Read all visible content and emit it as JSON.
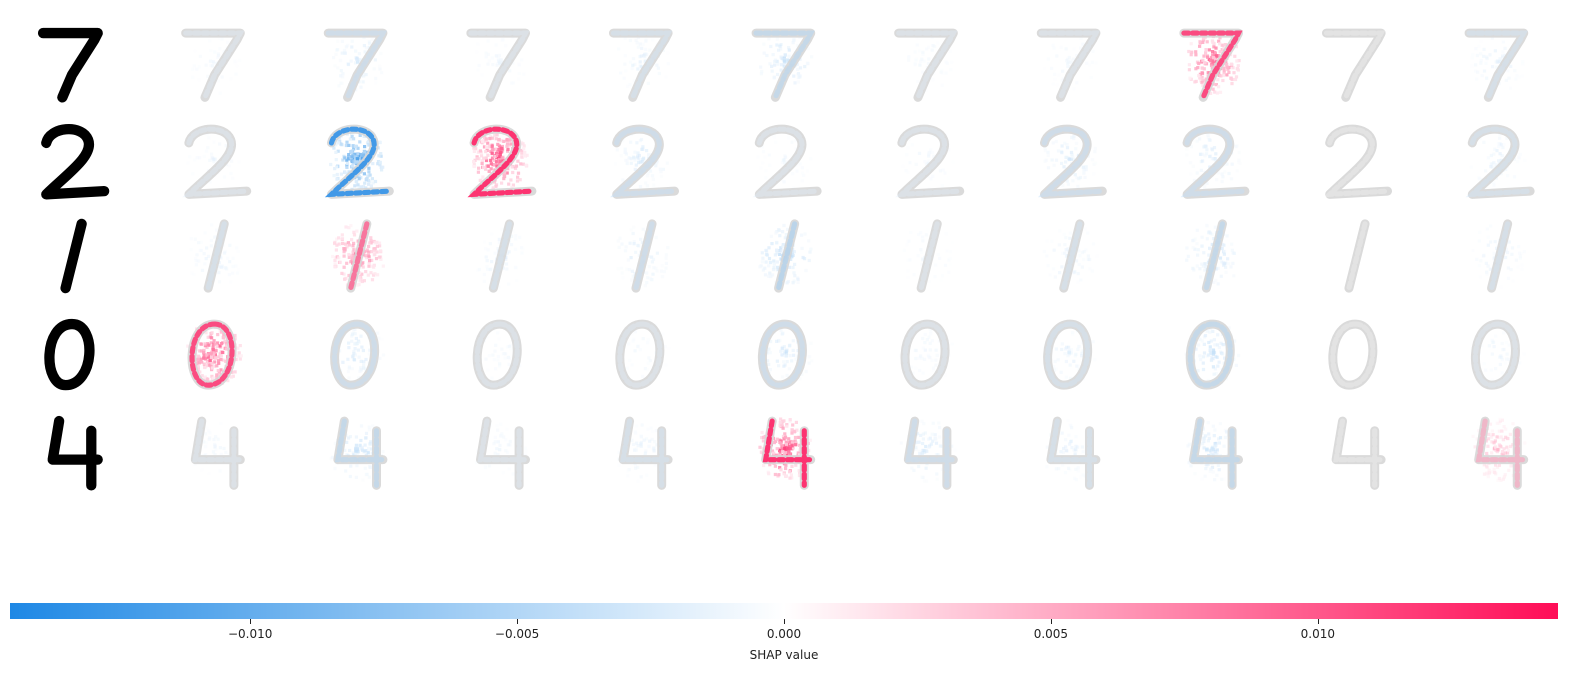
{
  "chart_data": {
    "type": "heatmap",
    "title": "",
    "grid": false,
    "rows": [
      {
        "input_digit": "7",
        "attributions": [
          {
            "column": 1,
            "peak_shap": -0.002
          },
          {
            "column": 2,
            "peak_shap": -0.004
          },
          {
            "column": 3,
            "peak_shap": -0.002
          },
          {
            "column": 4,
            "peak_shap": -0.003
          },
          {
            "column": 5,
            "peak_shap": -0.005
          },
          {
            "column": 6,
            "peak_shap": -0.002
          },
          {
            "column": 7,
            "peak_shap": -0.002
          },
          {
            "column": 8,
            "peak_shap": 0.012
          },
          {
            "column": 9,
            "peak_shap": 0.0
          },
          {
            "column": 10,
            "peak_shap": -0.003
          }
        ]
      },
      {
        "input_digit": "2",
        "attributions": [
          {
            "column": 1,
            "peak_shap": -0.002
          },
          {
            "column": 2,
            "peak_shap": -0.013
          },
          {
            "column": 3,
            "peak_shap": 0.013
          },
          {
            "column": 4,
            "peak_shap": -0.004
          },
          {
            "column": 5,
            "peak_shap": -0.002
          },
          {
            "column": 6,
            "peak_shap": -0.002
          },
          {
            "column": 7,
            "peak_shap": -0.004
          },
          {
            "column": 8,
            "peak_shap": -0.004
          },
          {
            "column": 9,
            "peak_shap": 0.0
          },
          {
            "column": 10,
            "peak_shap": -0.003
          }
        ]
      },
      {
        "input_digit": "1",
        "attributions": [
          {
            "column": 1,
            "peak_shap": -0.003
          },
          {
            "column": 2,
            "peak_shap": 0.01
          },
          {
            "column": 3,
            "peak_shap": -0.003
          },
          {
            "column": 4,
            "peak_shap": -0.004
          },
          {
            "column": 5,
            "peak_shap": -0.006
          },
          {
            "column": 6,
            "peak_shap": -0.002
          },
          {
            "column": 7,
            "peak_shap": -0.003
          },
          {
            "column": 8,
            "peak_shap": -0.005
          },
          {
            "column": 9,
            "peak_shap": 0.0
          },
          {
            "column": 10,
            "peak_shap": -0.003
          }
        ]
      },
      {
        "input_digit": "0",
        "attributions": [
          {
            "column": 1,
            "peak_shap": 0.012
          },
          {
            "column": 2,
            "peak_shap": -0.004
          },
          {
            "column": 3,
            "peak_shap": -0.002
          },
          {
            "column": 4,
            "peak_shap": -0.002
          },
          {
            "column": 5,
            "peak_shap": -0.004
          },
          {
            "column": 6,
            "peak_shap": -0.002
          },
          {
            "column": 7,
            "peak_shap": -0.003
          },
          {
            "column": 8,
            "peak_shap": -0.005
          },
          {
            "column": 9,
            "peak_shap": 0.0
          },
          {
            "column": 10,
            "peak_shap": -0.002
          }
        ]
      },
      {
        "input_digit": "4",
        "attributions": [
          {
            "column": 1,
            "peak_shap": -0.002
          },
          {
            "column": 2,
            "peak_shap": -0.005
          },
          {
            "column": 3,
            "peak_shap": -0.002
          },
          {
            "column": 4,
            "peak_shap": -0.003
          },
          {
            "column": 5,
            "peak_shap": 0.013
          },
          {
            "column": 6,
            "peak_shap": -0.004
          },
          {
            "column": 7,
            "peak_shap": -0.003
          },
          {
            "column": 8,
            "peak_shap": -0.005
          },
          {
            "column": 9,
            "peak_shap": 0.0
          },
          {
            "column": 10,
            "peak_shap": 0.006
          }
        ]
      }
    ],
    "colorbar": {
      "label": "SHAP value",
      "range": [
        -0.0145,
        0.0145
      ],
      "ticks": [
        -0.01,
        -0.005,
        0.0,
        0.005,
        0.01
      ],
      "tick_labels": [
        "−0.010",
        "−0.005",
        "0.000",
        "0.005",
        "0.010"
      ],
      "colors": {
        "negative": "#1e88e5",
        "zero": "#ffffff",
        "positive": "#ff0d57"
      }
    },
    "colors": {
      "input_digit": "#000000",
      "ghost_digit": "#d6d6d6"
    }
  }
}
